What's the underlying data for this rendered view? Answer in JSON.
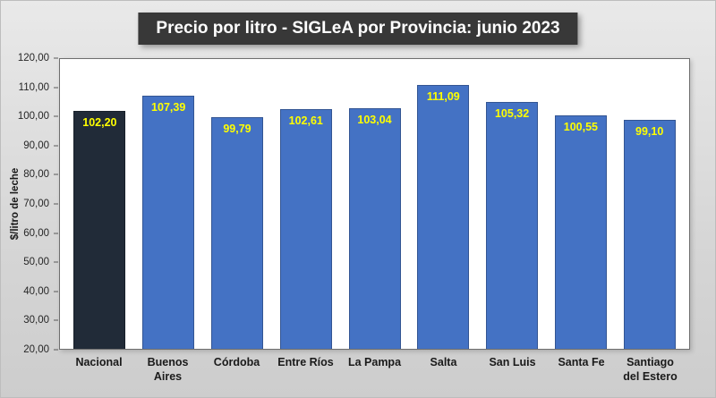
{
  "chart_data": {
    "type": "bar",
    "title": "Precio por litro - SIGLeA por Provincia: junio 2023",
    "categories": [
      "Nacional",
      "Buenos Aires",
      "Córdoba",
      "Entre Ríos",
      "La Pampa",
      "Salta",
      "San Luis",
      "Santa Fe",
      "Santiago del Estero"
    ],
    "category_labels": [
      "Nacional",
      "Buenos\nAires",
      "Córdoba",
      "Entre Ríos",
      "La Pampa",
      "Salta",
      "San Luis",
      "Santa Fe",
      "Santiago\ndel Estero"
    ],
    "values": [
      102.2,
      107.39,
      99.79,
      102.61,
      103.04,
      111.09,
      105.32,
      100.55,
      99.1
    ],
    "value_labels": [
      "102,20",
      "107,39",
      "99,79",
      "102,61",
      "103,04",
      "111,09",
      "105,32",
      "100,55",
      "99,10"
    ],
    "xlabel": "",
    "ylabel": "$/litro de leche",
    "ylim": [
      20,
      120
    ],
    "ytick_step": 10,
    "ytick_labels": [
      "120,00",
      "110,00",
      "100,00",
      "90,00",
      "80,00",
      "70,00",
      "60,00",
      "50,00",
      "40,00",
      "30,00",
      "20,00"
    ],
    "grid": false,
    "legend": false,
    "colors": {
      "highlight_index": 0,
      "highlight": "#212b38",
      "bar": "#4472c4",
      "value_label": "#ffff00",
      "title_bg": "#383838",
      "title_text": "#ffffff"
    }
  }
}
